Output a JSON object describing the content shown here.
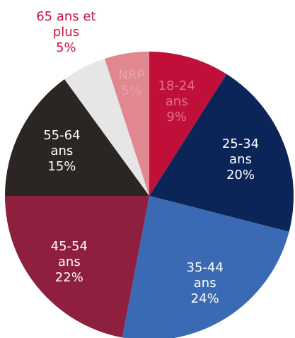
{
  "chart_data": {
    "type": "pie",
    "categories": [
      "18-24 ans",
      "25-34 ans",
      "35-44 ans",
      "45-54 ans",
      "55-64 ans",
      "65 ans et plus",
      "NRP"
    ],
    "values": [
      9,
      20,
      24,
      22,
      15,
      5,
      5
    ],
    "value_labels": [
      "9%",
      "20%",
      "24%",
      "22%",
      "15%",
      "5%",
      "5%"
    ],
    "colors": [
      "#c0103a",
      "#0b2559",
      "#3a6ab3",
      "#8e1f3e",
      "#2b2523",
      "#e6e6e6",
      "#e0878f"
    ],
    "label_colors": [
      "#e2707f",
      "#ffffff",
      "#ffffff",
      "#ffffff",
      "#ffffff",
      "#c8103e",
      "#eaa3aa"
    ]
  }
}
